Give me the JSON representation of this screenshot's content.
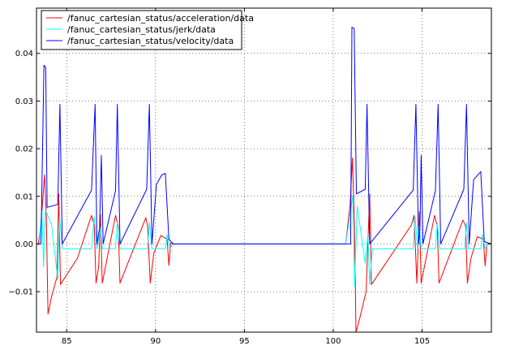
{
  "chart_data": {
    "type": "line",
    "title": "",
    "xlabel": "",
    "ylabel": "",
    "xlim": [
      83.3,
      108.9
    ],
    "ylim": [
      -0.0185,
      0.0495
    ],
    "grid": true,
    "legend_position": "top-left",
    "x_ticks": [
      85,
      90,
      95,
      100,
      105
    ],
    "x_tick_labels": [
      "85",
      "90",
      "95",
      "100",
      "105"
    ],
    "y_ticks": [
      -0.01,
      0.0,
      0.01,
      0.02,
      0.03,
      0.04
    ],
    "y_tick_labels": [
      "−0.01",
      "0.00",
      "0.01",
      "0.02",
      "0.03",
      "0.04"
    ],
    "series": [
      {
        "name": "/fanuc_cartesian_status/acceleration/data",
        "color": "#ff0000",
        "points": [
          [
            83.3,
            0
          ],
          [
            83.4,
            0
          ],
          [
            83.55,
            0.004
          ],
          [
            83.75,
            0.0145
          ],
          [
            83.85,
            0.006
          ],
          [
            83.95,
            -0.0147
          ],
          [
            84.15,
            -0.011
          ],
          [
            84.45,
            -0.007
          ],
          [
            84.55,
            0.0105
          ],
          [
            84.65,
            -0.0085
          ],
          [
            85.6,
            -0.003
          ],
          [
            86.4,
            0.006
          ],
          [
            86.55,
            0.004
          ],
          [
            86.65,
            -0.0082
          ],
          [
            86.8,
            -0.0048
          ],
          [
            86.9,
            0.0062
          ],
          [
            87.0,
            -0.0082
          ],
          [
            87.75,
            0.006
          ],
          [
            87.9,
            0.0038
          ],
          [
            88.0,
            -0.0082
          ],
          [
            89.45,
            0.0055
          ],
          [
            89.55,
            0.0038
          ],
          [
            89.7,
            -0.0082
          ],
          [
            89.9,
            -0.002
          ],
          [
            90.3,
            0.0018
          ],
          [
            90.65,
            0.001
          ],
          [
            90.75,
            -0.0045
          ],
          [
            90.85,
            0.0002
          ],
          [
            91.0,
            0
          ],
          [
            100.7,
            0
          ],
          [
            100.95,
            0.0083
          ],
          [
            101.08,
            0.018
          ],
          [
            101.2,
            0.003
          ],
          [
            101.28,
            -0.0185
          ],
          [
            101.5,
            -0.0155
          ],
          [
            101.85,
            -0.01
          ],
          [
            102.05,
            0.0105
          ],
          [
            102.15,
            -0.0085
          ],
          [
            104.4,
            0.004
          ],
          [
            104.55,
            0.006
          ],
          [
            104.7,
            -0.0082
          ],
          [
            104.85,
            0.0068
          ],
          [
            104.95,
            -0.0082
          ],
          [
            105.7,
            0.006
          ],
          [
            105.85,
            0.0038
          ],
          [
            105.95,
            -0.0082
          ],
          [
            107.3,
            0.005
          ],
          [
            107.45,
            0.0038
          ],
          [
            107.55,
            -0.0082
          ],
          [
            107.75,
            -0.003
          ],
          [
            108.1,
            0.0015
          ],
          [
            108.45,
            0.001
          ],
          [
            108.55,
            -0.0046
          ],
          [
            108.65,
            0
          ],
          [
            108.9,
            0
          ]
        ]
      },
      {
        "name": "/fanuc_cartesian_status/jerk/data",
        "color": "#00ffff",
        "points": [
          [
            83.3,
            0
          ],
          [
            83.45,
            0
          ],
          [
            83.6,
            0.007
          ],
          [
            83.7,
            -0.0048
          ],
          [
            83.8,
            0.0072
          ],
          [
            84.15,
            0.004
          ],
          [
            84.5,
            -0.0075
          ],
          [
            84.6,
            0.0058
          ],
          [
            84.75,
            -0.001
          ],
          [
            86.4,
            -0.001
          ],
          [
            86.55,
            0.0058
          ],
          [
            86.7,
            -0.001
          ],
          [
            86.9,
            0.0035
          ],
          [
            87.0,
            -0.001
          ],
          [
            87.75,
            -0.001
          ],
          [
            87.85,
            0.0045
          ],
          [
            88.0,
            -0.001
          ],
          [
            89.55,
            -0.001
          ],
          [
            89.65,
            0.0045
          ],
          [
            89.8,
            -0.001
          ],
          [
            90.55,
            -0.001
          ],
          [
            90.65,
            0.002
          ],
          [
            90.8,
            -0.001
          ],
          [
            91.0,
            0
          ],
          [
            100.7,
            0
          ],
          [
            101.1,
            0.0102
          ],
          [
            101.2,
            -0.009
          ],
          [
            101.35,
            0.008
          ],
          [
            101.8,
            -0.004
          ],
          [
            101.95,
            0.0022
          ],
          [
            102.05,
            -0.0085
          ],
          [
            102.2,
            -0.001
          ],
          [
            104.5,
            -0.001
          ],
          [
            104.6,
            0.0058
          ],
          [
            104.75,
            -0.001
          ],
          [
            104.85,
            0.0038
          ],
          [
            104.95,
            -0.001
          ],
          [
            105.75,
            -0.001
          ],
          [
            105.85,
            0.0045
          ],
          [
            106.0,
            -0.001
          ],
          [
            107.4,
            -0.001
          ],
          [
            107.5,
            0.0045
          ],
          [
            107.6,
            -0.001
          ],
          [
            108.3,
            -0.001
          ],
          [
            108.4,
            0.002
          ],
          [
            108.55,
            -0.001
          ],
          [
            108.7,
            0
          ],
          [
            108.9,
            0
          ]
        ]
      },
      {
        "name": "/fanuc_cartesian_status/velocity/data",
        "color": "#0000ff",
        "points": [
          [
            83.3,
            0
          ],
          [
            83.55,
            0
          ],
          [
            83.72,
            0.0375
          ],
          [
            83.82,
            0.037
          ],
          [
            83.9,
            0.0077
          ],
          [
            84.5,
            0.0083
          ],
          [
            84.62,
            0.0293
          ],
          [
            84.75,
            0.0
          ],
          [
            86.4,
            0.0113
          ],
          [
            86.6,
            0.0293
          ],
          [
            86.7,
            0.0
          ],
          [
            86.85,
            0.0033
          ],
          [
            86.95,
            0.0186
          ],
          [
            87.05,
            0.0
          ],
          [
            87.75,
            0.0112
          ],
          [
            87.85,
            0.0293
          ],
          [
            88.0,
            0.0
          ],
          [
            89.5,
            0.0115
          ],
          [
            89.65,
            0.0293
          ],
          [
            89.8,
            0.0
          ],
          [
            90.05,
            0.0125
          ],
          [
            90.35,
            0.0145
          ],
          [
            90.55,
            0.0148
          ],
          [
            90.75,
            0.001
          ],
          [
            91.0,
            0
          ],
          [
            100.7,
            0
          ],
          [
            100.98,
            0.0
          ],
          [
            101.05,
            0.0455
          ],
          [
            101.18,
            0.0452
          ],
          [
            101.3,
            0.0105
          ],
          [
            101.8,
            0.0115
          ],
          [
            101.9,
            0.0293
          ],
          [
            102.05,
            0.0
          ],
          [
            104.5,
            0.0113
          ],
          [
            104.65,
            0.0293
          ],
          [
            104.8,
            0.0
          ],
          [
            104.88,
            0.0033
          ],
          [
            104.95,
            0.0186
          ],
          [
            105.05,
            0.0
          ],
          [
            105.75,
            0.0112
          ],
          [
            105.9,
            0.0293
          ],
          [
            106.05,
            0.0
          ],
          [
            107.35,
            0.0115
          ],
          [
            107.5,
            0.0293
          ],
          [
            107.65,
            0.0
          ],
          [
            107.9,
            0.0135
          ],
          [
            108.3,
            0.0152
          ],
          [
            108.5,
            0.0005
          ],
          [
            108.9,
            0
          ]
        ]
      }
    ]
  }
}
